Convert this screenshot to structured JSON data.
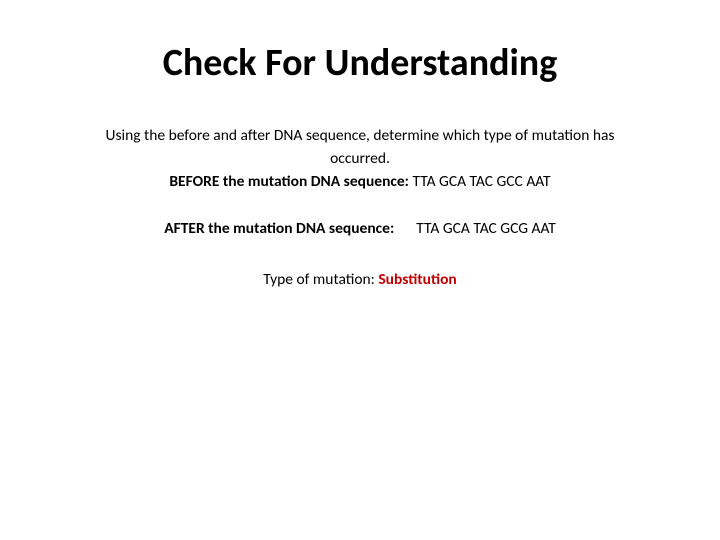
{
  "title": "Check For Understanding",
  "instruction_line1": "Using the before and after DNA sequence, determine which type of mutation has",
  "instruction_line2": "occurred.",
  "before": {
    "label": "BEFORE the mutation DNA sequence:",
    "sequence": "  TTA GCA TAC GCC AAT"
  },
  "after": {
    "label": "AFTER the mutation DNA sequence:",
    "sequence": "TTA GCA TAC GCG AAT"
  },
  "type": {
    "label": "Type of mutation: ",
    "answer": "Substitution"
  },
  "colors": {
    "text": "#000000",
    "answer": "#c00000",
    "background": "#ffffff"
  },
  "fonts": {
    "title_size_pt": 28,
    "body_size_pt": 12
  }
}
